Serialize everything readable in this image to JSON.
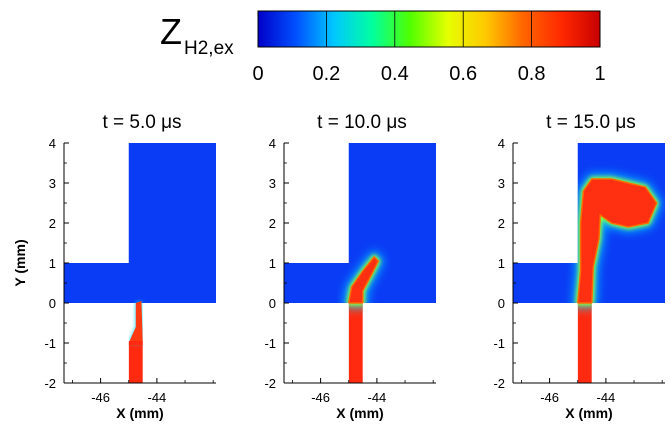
{
  "colorbar": {
    "label_main": "Z",
    "label_sub": "H2,ex",
    "min": 0,
    "max": 1,
    "ticks": [
      "0",
      "0.2",
      "0.4",
      "0.6",
      "0.8",
      "1"
    ],
    "colormap": [
      "#0000c8",
      "#0050ff",
      "#00c8ff",
      "#00ffa0",
      "#50ff00",
      "#e6ff00",
      "#ffc800",
      "#ff6400",
      "#ff2800",
      "#c80000"
    ]
  },
  "chart_data": [
    {
      "type": "heatmap",
      "title": "t = 5.0 μs",
      "xlabel": "X (mm)",
      "ylabel": "Y (mm)",
      "xlim": [
        -47.3,
        -41.9
      ],
      "ylim": [
        -2,
        4
      ],
      "xticks": [
        "-46",
        "-44"
      ],
      "yticks": [
        "-2",
        "-1",
        "0",
        "1",
        "2",
        "3",
        "4"
      ],
      "domain_regions": [
        {
          "x": [
            -47.3,
            -41.9
          ],
          "y": [
            0,
            1
          ]
        },
        {
          "x": [
            -45.0,
            -41.9
          ],
          "y": [
            1,
            4
          ]
        }
      ],
      "injector": {
        "x": [
          -45.0,
          -44.5
        ],
        "y": [
          -2,
          0
        ]
      },
      "fuel_jet": {
        "x": [
          -45.0,
          -44.5
        ],
        "y": [
          -2,
          -1.0
        ],
        "value": 1.0
      },
      "fuel_tip": [
        [
          -45.0,
          -1.0
        ],
        [
          -44.75,
          -0.6
        ],
        [
          -44.75,
          0.0
        ],
        [
          -44.55,
          0.05
        ],
        [
          -44.5,
          -1.0
        ]
      ]
    },
    {
      "type": "heatmap",
      "title": "t = 10.0 μs",
      "xlabel": "X (mm)",
      "ylabel": "",
      "xlim": [
        -47.3,
        -41.9
      ],
      "ylim": [
        -2,
        4
      ],
      "xticks": [
        "-46",
        "-44"
      ],
      "yticks": [
        "-2",
        "-1",
        "0",
        "1",
        "2",
        "3",
        "4"
      ],
      "domain_regions": [
        {
          "x": [
            -47.3,
            -41.9
          ],
          "y": [
            0,
            1
          ]
        },
        {
          "x": [
            -45.0,
            -41.9
          ],
          "y": [
            1,
            4
          ]
        }
      ],
      "injector": {
        "x": [
          -45.0,
          -44.5
        ],
        "y": [
          -2,
          0
        ]
      },
      "fuel_jet": {
        "x": [
          -45.0,
          -44.5
        ],
        "y": [
          -2,
          0
        ],
        "value": 1.0
      },
      "plume": [
        [
          -45.0,
          0.0
        ],
        [
          -44.9,
          0.4
        ],
        [
          -44.5,
          0.8
        ],
        [
          -44.1,
          1.15
        ],
        [
          -43.95,
          1.05
        ],
        [
          -44.2,
          0.7
        ],
        [
          -44.5,
          0.3
        ],
        [
          -44.5,
          0.0
        ]
      ]
    },
    {
      "type": "heatmap",
      "title": "t = 15.0 μs",
      "xlabel": "X (mm)",
      "ylabel": "",
      "xlim": [
        -47.3,
        -41.9
      ],
      "ylim": [
        -2,
        4
      ],
      "xticks": [
        "-46",
        "-44"
      ],
      "yticks": [
        "-2",
        "-1",
        "0",
        "1",
        "2",
        "3",
        "4"
      ],
      "domain_regions": [
        {
          "x": [
            -47.3,
            -41.9
          ],
          "y": [
            0,
            1
          ]
        },
        {
          "x": [
            -45.0,
            -41.9
          ],
          "y": [
            1,
            4
          ]
        }
      ],
      "injector": {
        "x": [
          -45.0,
          -44.5
        ],
        "y": [
          -2,
          0
        ]
      },
      "fuel_jet": {
        "x": [
          -45.0,
          -44.5
        ],
        "y": [
          -2,
          0
        ],
        "value": 1.0
      },
      "plume": [
        [
          -45.0,
          0.0
        ],
        [
          -44.9,
          0.8
        ],
        [
          -44.9,
          2.0
        ],
        [
          -44.8,
          2.8
        ],
        [
          -44.5,
          3.1
        ],
        [
          -43.8,
          3.1
        ],
        [
          -42.6,
          2.9
        ],
        [
          -42.2,
          2.5
        ],
        [
          -42.5,
          2.0
        ],
        [
          -43.2,
          1.9
        ],
        [
          -43.8,
          2.0
        ],
        [
          -44.2,
          2.2
        ],
        [
          -44.25,
          1.6
        ],
        [
          -44.45,
          0.9
        ],
        [
          -44.5,
          0.0
        ]
      ]
    }
  ]
}
